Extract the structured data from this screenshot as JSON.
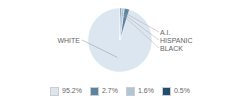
{
  "chart_data": {
    "type": "pie",
    "categories": [
      "WHITE",
      "A.I.",
      "HISPANIC",
      "BLACK"
    ],
    "values": [
      95.2,
      2.7,
      1.6,
      0.5
    ],
    "value_labels": [
      "95.2%",
      "2.7%",
      "1.6%",
      "0.5%"
    ],
    "colors": [
      "#dce6f1",
      "#5b84a0",
      "#aec6d8",
      "#1f4e6e"
    ],
    "legend": "bottom"
  }
}
